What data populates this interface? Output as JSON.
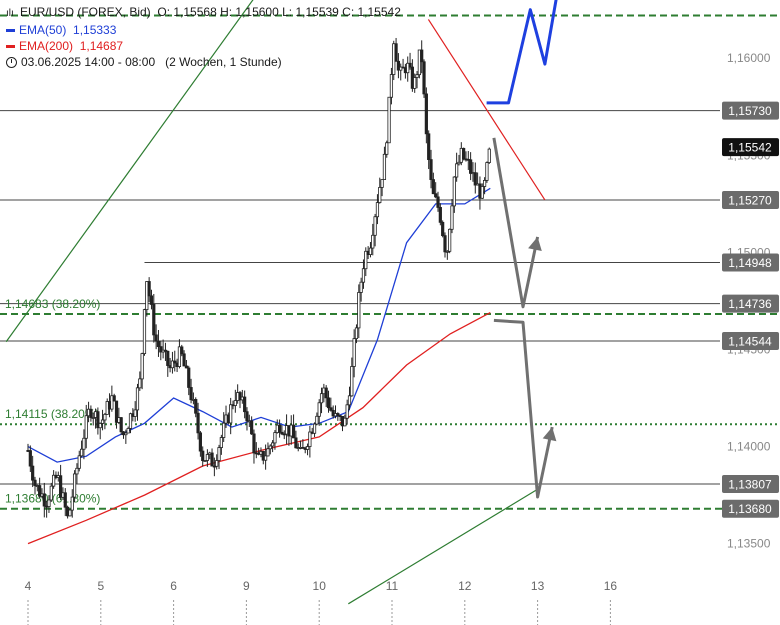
{
  "legend": {
    "symbol": "EUR/USD (FOREX, Bid)",
    "ohlc": "O: 1,15568  H: 1,15600  L: 1,15539  C: 1,15542",
    "ema50_label": "EMA(50)",
    "ema50_value": "1,15333",
    "ema200_label": "EMA(200)",
    "ema200_value": "1,14687",
    "range": "03.06.2025 14:00 - 08:00",
    "period": "(2 Wochen, 1 Stunde)"
  },
  "colors": {
    "ema50": "#1f3fd6",
    "ema200": "#e02020",
    "candle": "#222222",
    "hline": "#444444",
    "fib": "#2e7d32",
    "trend_green": "#2e7d32",
    "trend_red": "#e02020",
    "projection_blue": "#1e40e0",
    "projection_grey": "#707070"
  },
  "chart_data": {
    "type": "candlestick",
    "y_axis_ticks": [
      "1,13500",
      "1,14000",
      "1,14500",
      "1,15000",
      "1,15500",
      "1,16000"
    ],
    "ylim": [
      1.1322,
      1.163
    ],
    "x_axis_ticks": [
      "4",
      "5",
      "6",
      "9",
      "10",
      "11",
      "12",
      "13",
      "16"
    ],
    "price_tags": [
      {
        "label": "1,15730",
        "value": 1.1573,
        "style": "grey"
      },
      {
        "label": "1,15542",
        "value": 1.15542,
        "style": "current"
      },
      {
        "label": "1,15270",
        "value": 1.1527,
        "style": "grey"
      },
      {
        "label": "1,14948",
        "value": 1.14948,
        "style": "grey"
      },
      {
        "label": "1,14736",
        "value": 1.14736,
        "style": "grey"
      },
      {
        "label": "1,14544",
        "value": 1.14544,
        "style": "grey"
      },
      {
        "label": "1,13807",
        "value": 1.13807,
        "style": "grey"
      },
      {
        "label": "1,13680",
        "value": 1.1368,
        "style": "grey"
      }
    ],
    "horizontal_lines": [
      {
        "value": 1.1573,
        "style": "solid"
      },
      {
        "value": 1.1527,
        "style": "solid"
      },
      {
        "value": 1.14948,
        "style": "solid",
        "from_day": 5.6
      },
      {
        "value": 1.14736,
        "style": "solid"
      },
      {
        "value": 1.14544,
        "style": "solid"
      },
      {
        "value": 1.13807,
        "style": "solid"
      }
    ],
    "fib_lines": [
      {
        "value": 1.1622,
        "label": "",
        "style": "dashed"
      },
      {
        "value": 1.14683,
        "label": "1,14683 (38.20%)",
        "style": "dashed"
      },
      {
        "value": 1.14115,
        "label": "1,14115 (38.20%)",
        "style": "dotted"
      },
      {
        "value": 1.1368,
        "label": "1,13680 (61.80%)",
        "style": "dashed"
      }
    ],
    "trendlines": [
      {
        "color": "trend_green",
        "from": [
          3.7,
          1.1454
        ],
        "to": [
          7.3,
          1.1641
        ]
      },
      {
        "color": "trend_green",
        "from": [
          8.4,
          1.1319
        ],
        "to": [
          11.0,
          1.1378
        ]
      },
      {
        "color": "trend_red",
        "from": [
          9.5,
          1.162
        ],
        "to": [
          11.1,
          1.1527
        ]
      }
    ],
    "projections": [
      {
        "color": "projection_blue",
        "points": [
          [
            10.3,
            1.1577
          ],
          [
            10.6,
            1.1577
          ],
          [
            10.9,
            1.1625
          ],
          [
            11.1,
            1.1597
          ],
          [
            11.3,
            1.164
          ]
        ]
      },
      {
        "color": "projection_grey",
        "points": [
          [
            10.4,
            1.1559
          ],
          [
            10.8,
            1.1472
          ],
          [
            11.0,
            1.1508
          ]
        ]
      },
      {
        "color": "projection_grey",
        "points": [
          [
            10.4,
            1.1465
          ],
          [
            10.8,
            1.1464
          ],
          [
            11.0,
            1.1374
          ],
          [
            11.2,
            1.141
          ]
        ]
      }
    ],
    "price_path": [
      [
        4.0,
        1.1398
      ],
      [
        4.1,
        1.138
      ],
      [
        4.25,
        1.1372
      ],
      [
        4.4,
        1.1385
      ],
      [
        4.55,
        1.1362
      ],
      [
        4.7,
        1.1395
      ],
      [
        4.85,
        1.142
      ],
      [
        5.0,
        1.1412
      ],
      [
        5.15,
        1.1425
      ],
      [
        5.3,
        1.1405
      ],
      [
        5.45,
        1.142
      ],
      [
        5.55,
        1.1435
      ],
      [
        5.62,
        1.149
      ],
      [
        5.75,
        1.1455
      ],
      [
        5.95,
        1.144
      ],
      [
        6.1,
        1.1448
      ],
      [
        6.25,
        1.1425
      ],
      [
        6.4,
        1.1395
      ],
      [
        6.55,
        1.1392
      ],
      [
        6.7,
        1.141
      ],
      [
        6.85,
        1.1427
      ],
      [
        7.0,
        1.1418
      ],
      [
        7.15,
        1.1392
      ],
      [
        7.3,
        1.1398
      ],
      [
        7.45,
        1.1412
      ],
      [
        7.6,
        1.1408
      ],
      [
        7.75,
        1.1395
      ],
      [
        7.9,
        1.141
      ],
      [
        8.05,
        1.143
      ],
      [
        8.2,
        1.1415
      ],
      [
        8.35,
        1.1412
      ],
      [
        8.45,
        1.144
      ],
      [
        8.55,
        1.1478
      ],
      [
        8.62,
        1.1498
      ],
      [
        8.7,
        1.1505
      ],
      [
        8.8,
        1.1528
      ],
      [
        8.9,
        1.1548
      ],
      [
        8.97,
        1.158
      ],
      [
        9.02,
        1.1612
      ],
      [
        9.1,
        1.159
      ],
      [
        9.2,
        1.1597
      ],
      [
        9.3,
        1.1585
      ],
      [
        9.4,
        1.1605
      ],
      [
        9.47,
        1.156
      ],
      [
        9.55,
        1.153
      ],
      [
        9.65,
        1.1522
      ],
      [
        9.75,
        1.1498
      ],
      [
        9.85,
        1.1538
      ],
      [
        9.95,
        1.155
      ],
      [
        10.05,
        1.1545
      ],
      [
        10.15,
        1.1535
      ],
      [
        10.25,
        1.1529
      ],
      [
        10.35,
        1.1554
      ]
    ],
    "ema50": [
      [
        4.0,
        1.14
      ],
      [
        4.4,
        1.1392
      ],
      [
        4.8,
        1.1395
      ],
      [
        5.2,
        1.1405
      ],
      [
        5.6,
        1.1412
      ],
      [
        6.0,
        1.1425
      ],
      [
        6.4,
        1.1418
      ],
      [
        6.8,
        1.141
      ],
      [
        7.2,
        1.1415
      ],
      [
        7.6,
        1.141
      ],
      [
        8.0,
        1.1412
      ],
      [
        8.4,
        1.1418
      ],
      [
        8.8,
        1.1455
      ],
      [
        9.2,
        1.1505
      ],
      [
        9.6,
        1.1525
      ],
      [
        10.0,
        1.1525
      ],
      [
        10.35,
        1.1533
      ]
    ],
    "ema200": [
      [
        4.0,
        1.135
      ],
      [
        4.8,
        1.1362
      ],
      [
        5.6,
        1.1375
      ],
      [
        6.4,
        1.139
      ],
      [
        7.2,
        1.1398
      ],
      [
        8.0,
        1.1405
      ],
      [
        8.6,
        1.142
      ],
      [
        9.2,
        1.1442
      ],
      [
        9.8,
        1.1458
      ],
      [
        10.35,
        1.1469
      ]
    ]
  }
}
